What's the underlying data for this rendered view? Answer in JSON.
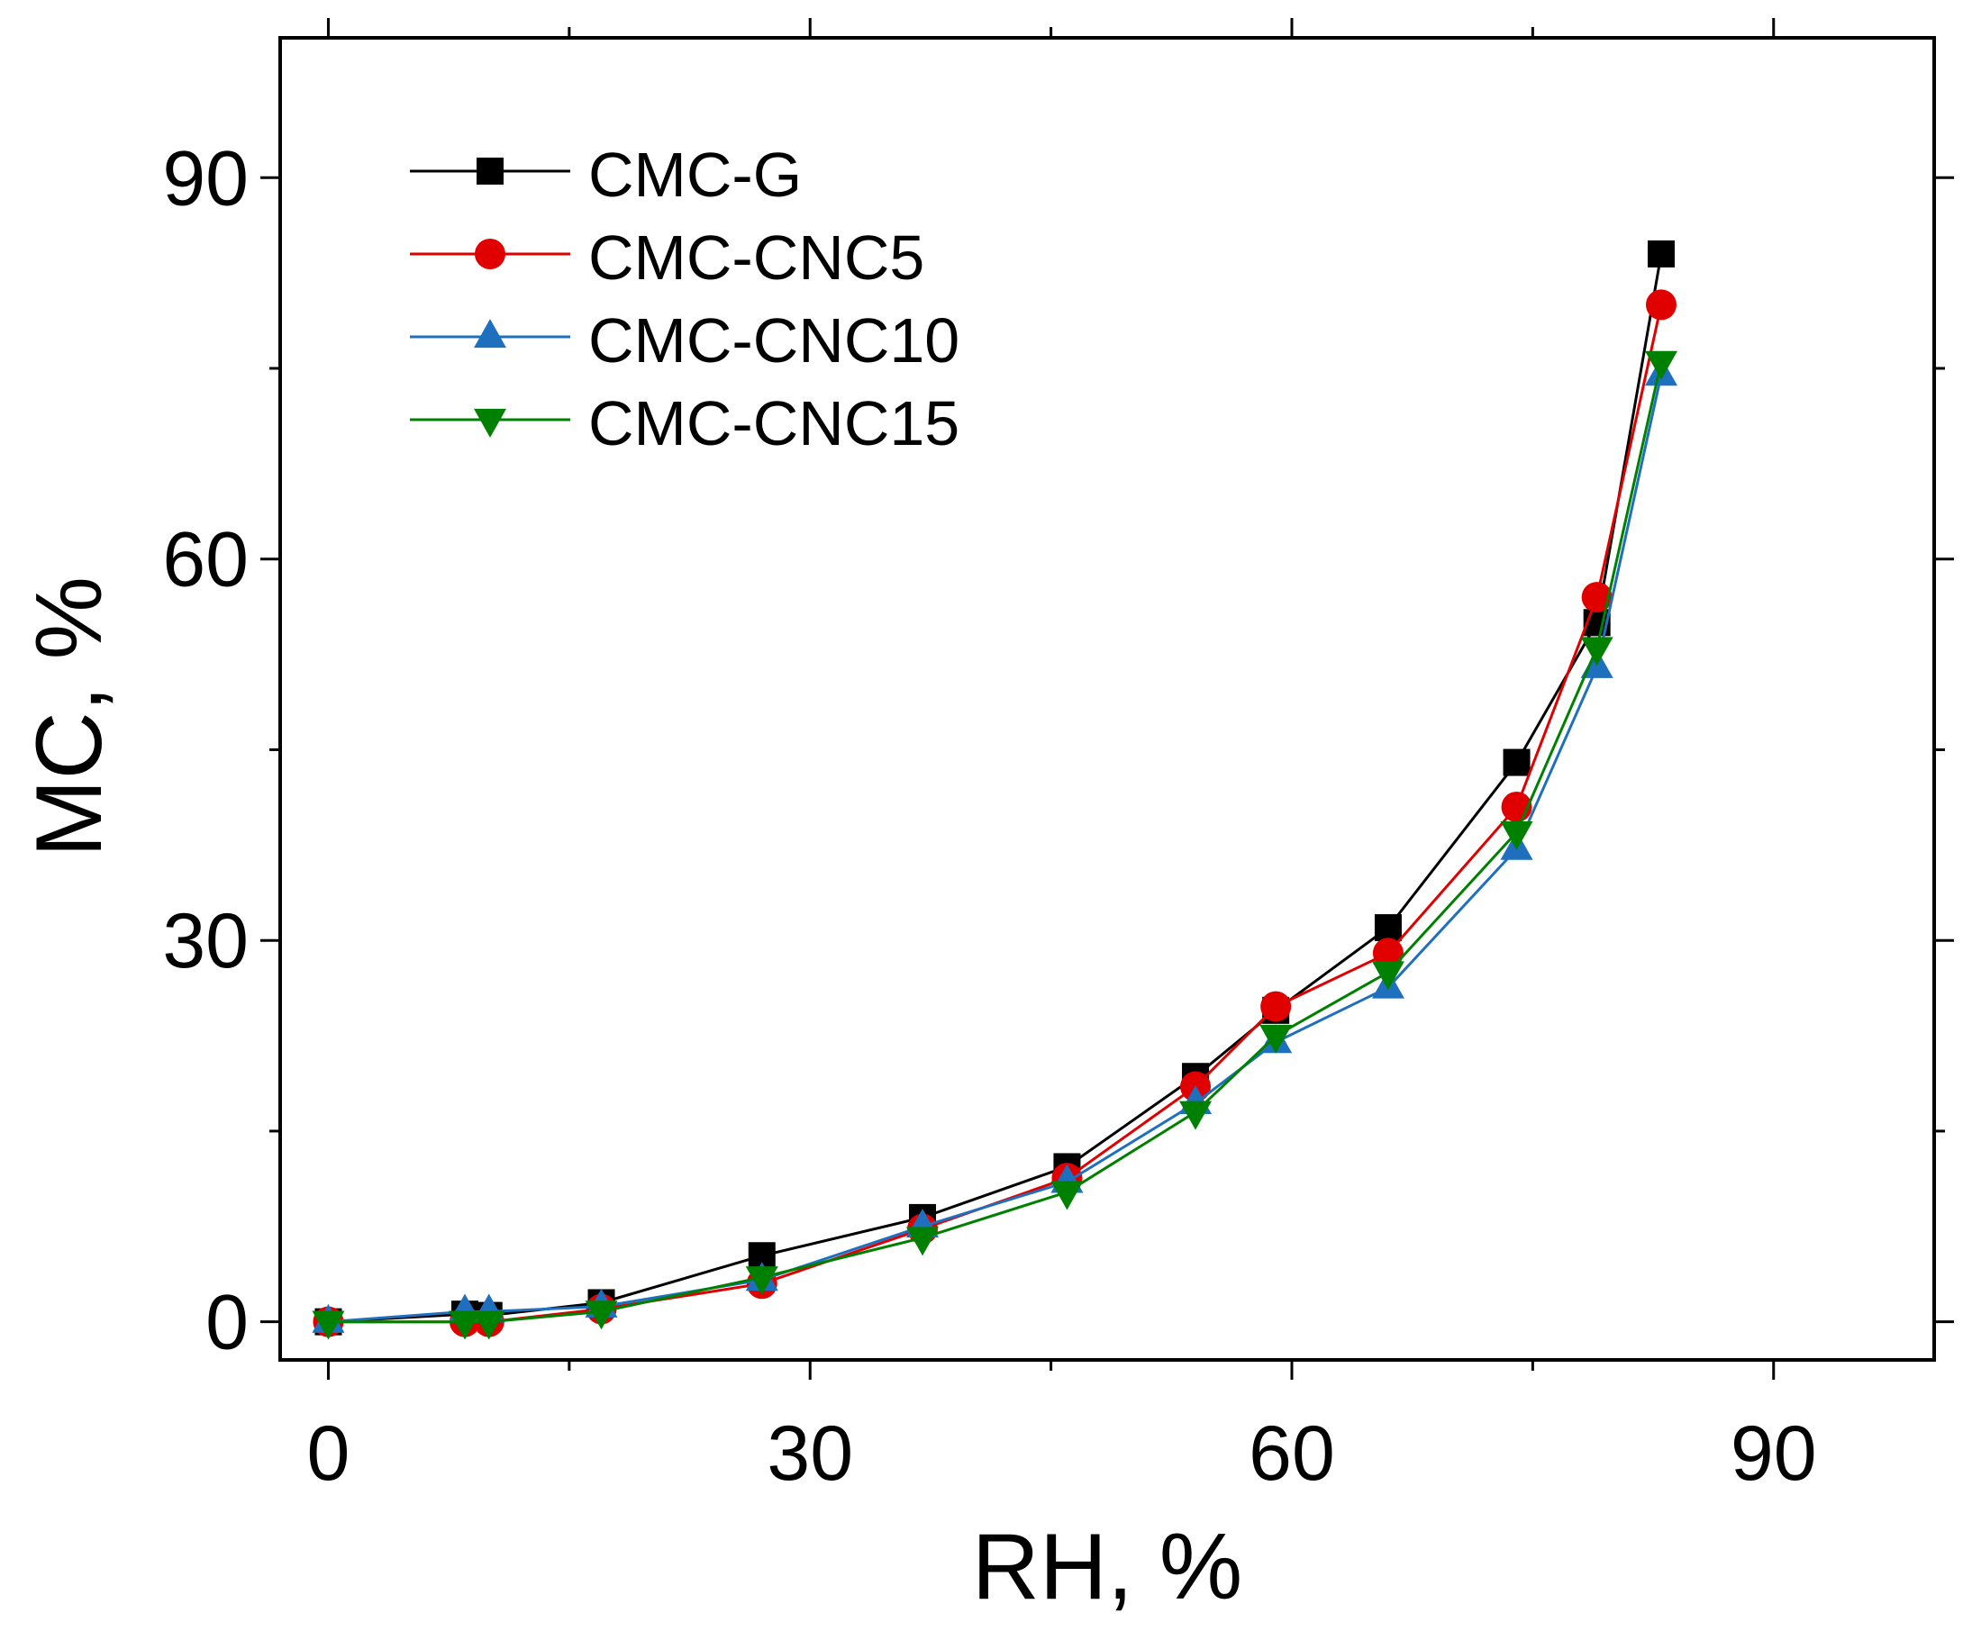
{
  "chart_data": {
    "type": "line",
    "title": "",
    "xlabel": "RH, %",
    "ylabel": "MC, %",
    "xlim": [
      -3,
      100
    ],
    "ylim": [
      -3,
      101
    ],
    "xticks": [
      0,
      30,
      60,
      90
    ],
    "yticks": [
      0,
      30,
      60,
      90
    ],
    "xtick_labels": [
      "0",
      "30",
      "60",
      "90"
    ],
    "ytick_labels": [
      "0",
      "30",
      "60",
      "90"
    ],
    "grid": false,
    "legend_position": "top-left",
    "series": [
      {
        "name": "CMC-G",
        "color": "#000000",
        "marker": "square",
        "x": [
          0,
          8.5,
          10,
          17,
          27,
          37,
          46,
          54,
          59,
          66,
          74,
          79,
          83
        ],
        "y": [
          0,
          0.6,
          0.5,
          1.5,
          5.2,
          8.2,
          12.2,
          19.3,
          24.5,
          31,
          44,
          55,
          84
        ]
      },
      {
        "name": "CMC-CNC5",
        "color": "#e00000",
        "marker": "circle",
        "x": [
          0,
          8.5,
          10,
          17,
          27,
          37,
          46,
          54,
          59,
          66,
          74,
          79,
          83
        ],
        "y": [
          0,
          0,
          0,
          1,
          3,
          7.3,
          11.3,
          18.5,
          24.8,
          29,
          40.5,
          57,
          80
        ]
      },
      {
        "name": "CMC-CNC10",
        "color": "#1f6fbf",
        "marker": "triangle-up",
        "x": [
          0,
          8.5,
          10,
          17,
          27,
          37,
          46,
          54,
          59,
          66,
          74,
          79,
          83
        ],
        "y": [
          0,
          0.8,
          0.8,
          1.2,
          3.3,
          7.5,
          11,
          17.2,
          22,
          26.3,
          37.2,
          51.5,
          74.5
        ]
      },
      {
        "name": "CMC-CNC15",
        "color": "#008000",
        "marker": "triangle-down",
        "x": [
          0,
          8.5,
          10,
          17,
          27,
          37,
          46,
          54,
          59,
          66,
          74,
          79,
          83
        ],
        "y": [
          0,
          0,
          0,
          0.8,
          3.5,
          6.6,
          10.2,
          16.5,
          22.5,
          27.5,
          38.5,
          53,
          75.5
        ]
      }
    ]
  }
}
